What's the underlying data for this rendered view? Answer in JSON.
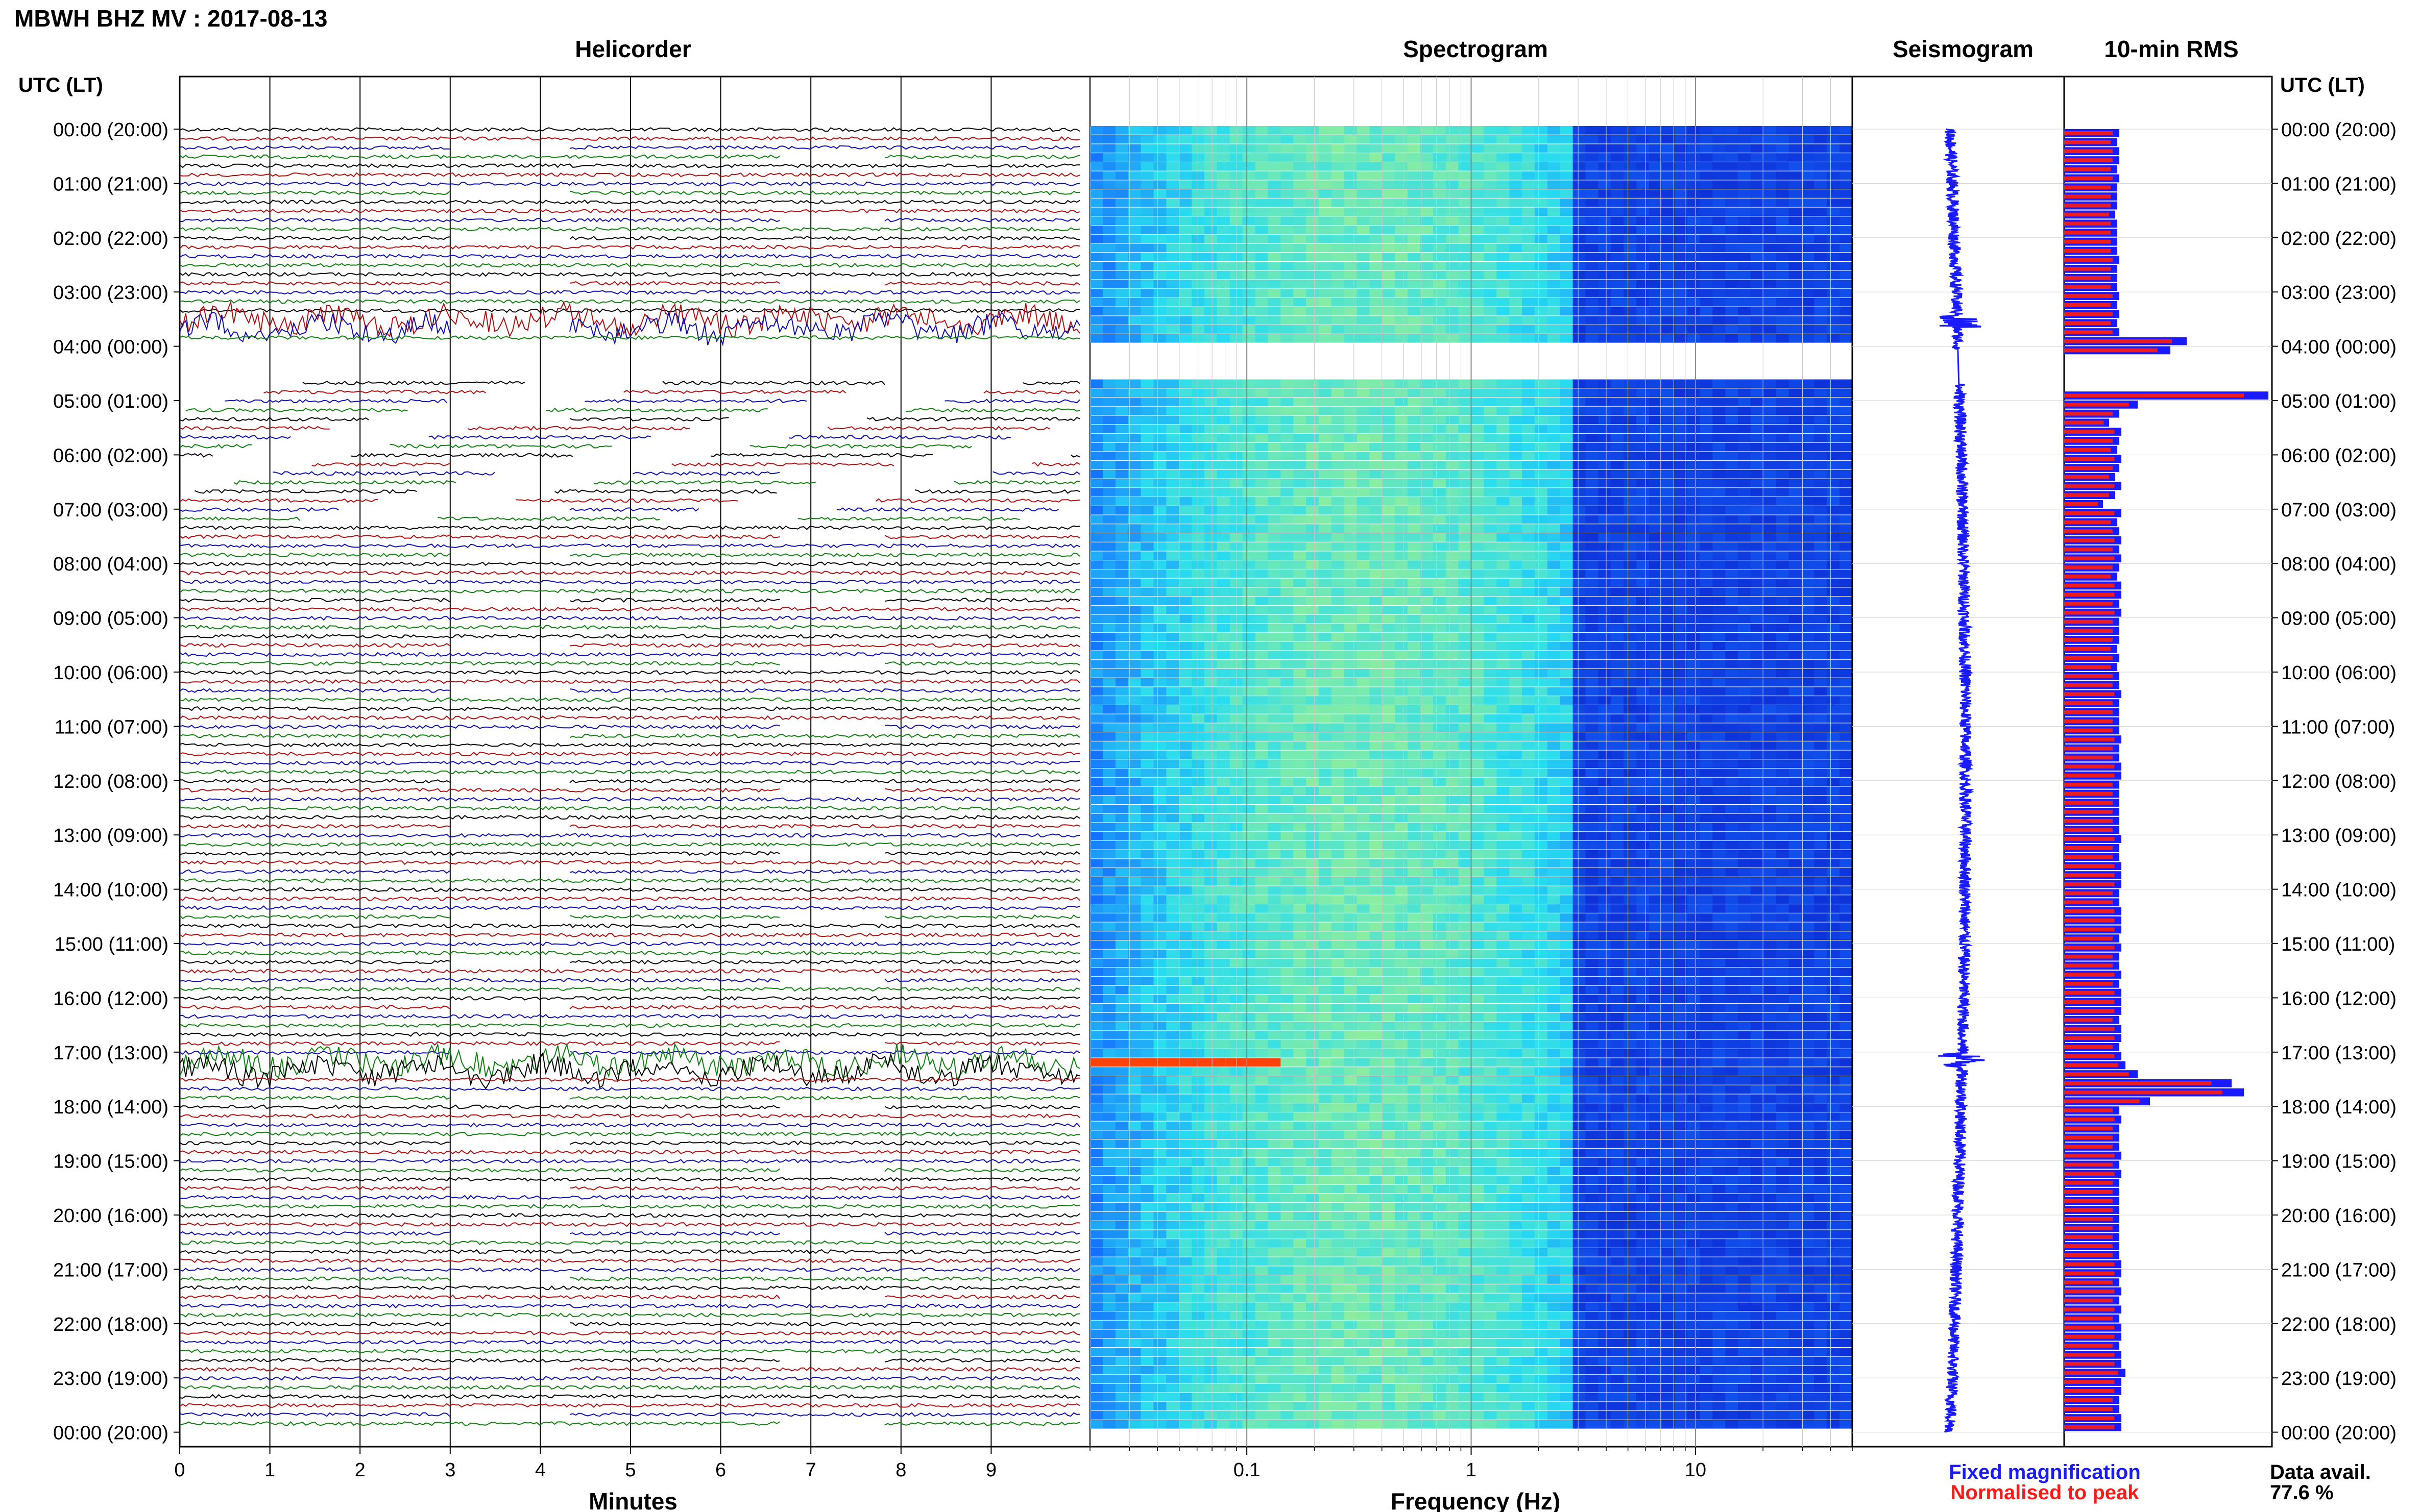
{
  "title": "MBWH BHZ MV : 2017-08-13",
  "panels": {
    "helicorder": "Helicorder",
    "spectrogram": "Spectrogram",
    "seismogram": "Seismogram",
    "rms": "10-min RMS"
  },
  "time_axis_header": "UTC (LT)",
  "time_labels": [
    "00:00 (20:00)",
    "01:00 (21:00)",
    "02:00 (22:00)",
    "03:00 (23:00)",
    "04:00 (00:00)",
    "05:00 (01:00)",
    "06:00 (02:00)",
    "07:00 (03:00)",
    "08:00 (04:00)",
    "09:00 (05:00)",
    "10:00 (06:00)",
    "11:00 (07:00)",
    "12:00 (08:00)",
    "13:00 (09:00)",
    "14:00 (10:00)",
    "15:00 (11:00)",
    "16:00 (12:00)",
    "17:00 (13:00)",
    "18:00 (14:00)",
    "19:00 (15:00)",
    "20:00 (16:00)",
    "21:00 (17:00)",
    "22:00 (18:00)",
    "23:00 (19:00)",
    "00:00 (20:00)"
  ],
  "minutes_axis": {
    "label": "Minutes",
    "ticks": [
      "0",
      "1",
      "2",
      "3",
      "4",
      "5",
      "6",
      "7",
      "8",
      "9"
    ]
  },
  "frequency_axis": {
    "label": "Frequency (Hz)",
    "ticks": [
      "0.1",
      "1",
      "10"
    ]
  },
  "legend": {
    "fixed": {
      "text": "Fixed magnification",
      "color": "#1a1aff"
    },
    "normalised": {
      "text": "Normalised to peak",
      "color": "#ff1a1a"
    }
  },
  "availability": {
    "label": "Data avail.",
    "value": "77.6 %"
  },
  "colors": {
    "trace_cycle": [
      "#000000",
      "#b01010",
      "#1010b0",
      "#108010"
    ],
    "rms_fixed": "#1a1aff",
    "rms_normalised": "#ee1c1c",
    "spectrogram_low": "#0a14c8",
    "spectrogram_high": "#ff2a00"
  },
  "chart_data": {
    "type": "heatmap",
    "time_range_hours": [
      0,
      24
    ],
    "row_interval_minutes": 10,
    "frequency_range_hz": [
      0.02,
      50
    ],
    "frequency_scale": "log",
    "data_gap_hours": [
      4.05,
      4.7
    ],
    "events_hours": [
      3.5,
      4.5,
      17.1,
      17.2
    ],
    "rms": {
      "normalisation": "normalised to peak",
      "row_hours": [
        0,
        0.167,
        0.333,
        0.5,
        0.667,
        0.833,
        1,
        1.167,
        1.333,
        1.5,
        1.667,
        1.833,
        2,
        2.167,
        2.333,
        2.5,
        2.667,
        2.833,
        3,
        3.167,
        3.333,
        3.5,
        3.667,
        3.833,
        4,
        4.167,
        4.333,
        4.5,
        4.667,
        4.833,
        5,
        5.167,
        5.333,
        5.5,
        5.667,
        5.833,
        6,
        6.167,
        6.333,
        6.5,
        6.667,
        6.833,
        7,
        7.167,
        7.333,
        7.5,
        7.667,
        7.833,
        8,
        8.167,
        8.333,
        8.5,
        8.667,
        8.833,
        9,
        9.167,
        9.333,
        9.5,
        9.667,
        9.833,
        10,
        10.167,
        10.333,
        10.5,
        10.667,
        10.833,
        11,
        11.167,
        11.333,
        11.5,
        11.667,
        11.833,
        12,
        12.167,
        12.333,
        12.5,
        12.667,
        12.833,
        13,
        13.167,
        13.333,
        13.5,
        13.667,
        13.833,
        14,
        14.167,
        14.333,
        14.5,
        14.667,
        14.833,
        15,
        15.167,
        15.333,
        15.5,
        15.667,
        15.833,
        16,
        16.167,
        16.333,
        16.5,
        16.667,
        16.833,
        17,
        17.167,
        17.333,
        17.5,
        17.667,
        17.833,
        18,
        18.167,
        18.333,
        18.5,
        18.667,
        18.833,
        19,
        19.167,
        19.333,
        19.5,
        19.667,
        19.833,
        20,
        20.167,
        20.333,
        20.5,
        20.667,
        20.833,
        21,
        21.167,
        21.333,
        21.5,
        21.667,
        21.833,
        22,
        22.167,
        22.333,
        22.5,
        22.667,
        22.833,
        23,
        23.167,
        23.333,
        23.5,
        23.667,
        23.833
      ],
      "fixed_magnification": [
        0.27,
        0.26,
        0.27,
        0.27,
        0.26,
        0.27,
        0.26,
        0.26,
        0.26,
        0.25,
        0.26,
        0.26,
        0.26,
        0.26,
        0.27,
        0.26,
        0.26,
        0.26,
        0.27,
        0.26,
        0.27,
        0.26,
        0.27,
        0.6,
        0.52,
        null,
        null,
        null,
        null,
        1.0,
        0.36,
        0.27,
        0.22,
        0.28,
        0.27,
        0.26,
        0.28,
        0.27,
        0.25,
        0.28,
        0.25,
        0.19,
        0.28,
        0.26,
        0.27,
        0.28,
        0.27,
        0.28,
        0.27,
        0.26,
        0.28,
        0.28,
        0.27,
        0.28,
        0.27,
        0.27,
        0.27,
        0.26,
        0.27,
        0.26,
        0.27,
        0.27,
        0.28,
        0.27,
        0.27,
        0.27,
        0.27,
        0.28,
        0.27,
        0.27,
        0.28,
        0.28,
        0.27,
        0.27,
        0.27,
        0.27,
        0.27,
        0.27,
        0.28,
        0.27,
        0.27,
        0.28,
        0.28,
        0.28,
        0.27,
        0.27,
        0.28,
        0.28,
        0.28,
        0.27,
        0.28,
        0.27,
        0.27,
        0.28,
        0.27,
        0.28,
        0.28,
        0.28,
        0.27,
        0.28,
        0.28,
        0.27,
        0.28,
        0.3,
        0.36,
        0.82,
        0.88,
        0.42,
        0.27,
        0.28,
        0.27,
        0.27,
        0.27,
        0.28,
        0.27,
        0.28,
        0.27,
        0.27,
        0.27,
        0.27,
        0.27,
        0.27,
        0.27,
        0.27,
        0.27,
        0.28,
        0.28,
        0.27,
        0.28,
        0.27,
        0.28,
        0.27,
        0.28,
        0.28,
        0.27,
        0.28,
        0.28,
        0.3,
        0.28,
        0.28,
        0.27,
        0.27,
        0.28,
        0.28,
        0.28,
        0.27,
        0.28,
        0.28
      ]
    }
  }
}
